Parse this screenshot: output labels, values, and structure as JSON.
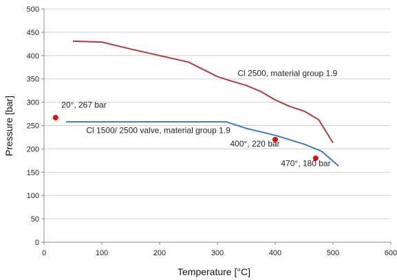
{
  "chart_data": {
    "type": "line",
    "title": "",
    "xlabel": "Temperature [°C]",
    "ylabel": "Pressure [bar]",
    "xlim": [
      0,
      600
    ],
    "ylim": [
      0,
      500
    ],
    "x_ticks": [
      0,
      100,
      200,
      300,
      400,
      500,
      600
    ],
    "y_ticks": [
      0,
      50,
      100,
      150,
      200,
      250,
      300,
      350,
      400,
      450,
      500
    ],
    "grid": "horizontal",
    "legend": "none",
    "series": [
      {
        "color": "#b03a3a",
        "points": [
          [
            50,
            431
          ],
          [
            100,
            429
          ],
          [
            150,
            414
          ],
          [
            200,
            400
          ],
          [
            250,
            386
          ],
          [
            300,
            355
          ],
          [
            325,
            345
          ],
          [
            350,
            336
          ],
          [
            375,
            323
          ],
          [
            400,
            305
          ],
          [
            425,
            291
          ],
          [
            450,
            281
          ],
          [
            475,
            263
          ],
          [
            500,
            213
          ]
        ]
      },
      {
        "color": "#3a7abf",
        "points": [
          [
            38,
            258
          ],
          [
            100,
            258
          ],
          [
            200,
            258
          ],
          [
            300,
            258
          ],
          [
            315,
            258
          ],
          [
            350,
            244
          ],
          [
            400,
            229
          ],
          [
            450,
            210
          ],
          [
            480,
            195
          ],
          [
            510,
            163
          ]
        ]
      }
    ],
    "markers": [
      {
        "x": 20,
        "y": 267,
        "color": "#e01010"
      },
      {
        "x": 400,
        "y": 220,
        "color": "#e01010"
      },
      {
        "x": 470,
        "y": 180,
        "color": "#e01010"
      }
    ],
    "annotations": [
      {
        "text": "Cl 2500, material group 1.9",
        "x": 335,
        "y": 356
      },
      {
        "text": "20°, 267 bar",
        "x": 30,
        "y": 288
      },
      {
        "text": "Cl 1500/ 2500 valve, material group 1.9",
        "x": 73,
        "y": 234
      },
      {
        "text": "400°, 220 bar",
        "x": 322,
        "y": 205
      },
      {
        "text": "470°, 180 bar",
        "x": 410,
        "y": 163
      }
    ]
  }
}
